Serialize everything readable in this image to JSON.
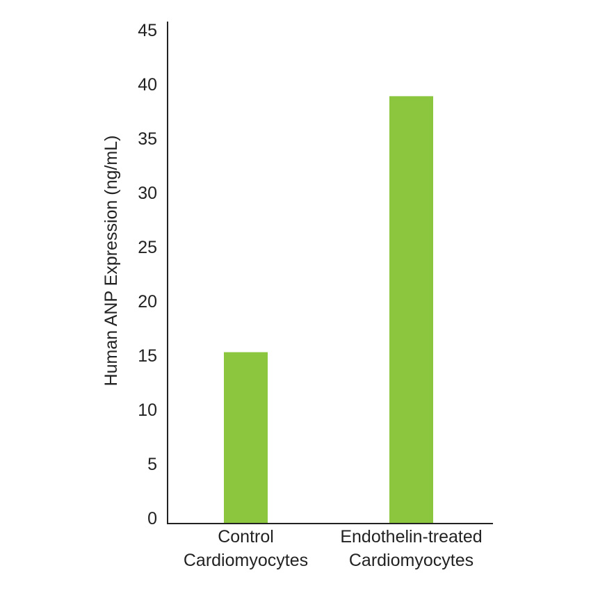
{
  "chart_data": {
    "type": "bar",
    "categories": [
      [
        "Control",
        "Cardiomyocytes"
      ],
      [
        "Endothelin-treated",
        "Cardiomyocytes"
      ]
    ],
    "values": [
      15.8,
      39.4
    ],
    "title": "",
    "xlabel": "",
    "ylabel": "Human ANP Expression (ng/mL)",
    "ylim": [
      0,
      45
    ],
    "yticks": [
      0,
      5,
      10,
      15,
      20,
      25,
      30,
      35,
      40,
      45
    ],
    "grid": false,
    "bar_color": "#8cc63f",
    "axis_color": "#222222"
  }
}
